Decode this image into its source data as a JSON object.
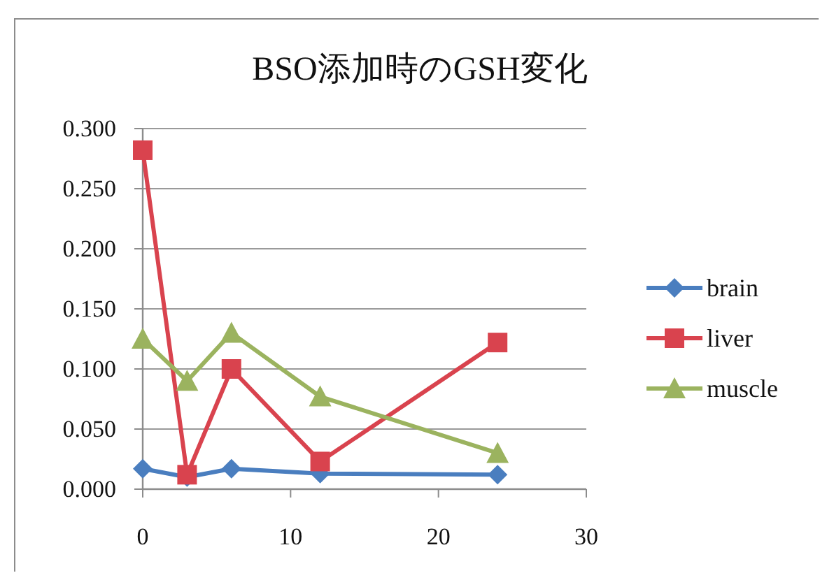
{
  "chart_data": {
    "type": "line",
    "title": "BSO添加時のGSH変化",
    "x": [
      0,
      3,
      6,
      12,
      24
    ],
    "series": [
      {
        "name": "brain",
        "color": "#4a7ebf",
        "marker": "diamond",
        "values": [
          0.017,
          0.01,
          0.017,
          0.013,
          0.012
        ]
      },
      {
        "name": "liver",
        "color": "#d9434e",
        "marker": "square",
        "values": [
          0.282,
          0.012,
          0.1,
          0.023,
          0.122
        ]
      },
      {
        "name": "muscle",
        "color": "#9bb35f",
        "marker": "triangle",
        "values": [
          0.125,
          0.09,
          0.13,
          0.077,
          0.03
        ]
      }
    ],
    "xlim": [
      0,
      30
    ],
    "xticks": [
      0,
      10,
      20,
      30
    ],
    "ylim": [
      0,
      0.3
    ],
    "yticks": [
      {
        "value": 0,
        "label": "0.000"
      },
      {
        "value": 0.05,
        "label": "0.050"
      },
      {
        "value": 0.1,
        "label": "0.100"
      },
      {
        "value": 0.15,
        "label": "0.150"
      },
      {
        "value": 0.2,
        "label": "0.200"
      },
      {
        "value": 0.25,
        "label": "0.250"
      },
      {
        "value": 0.3,
        "label": "0.300"
      }
    ],
    "grid": "y",
    "legend": "right"
  }
}
